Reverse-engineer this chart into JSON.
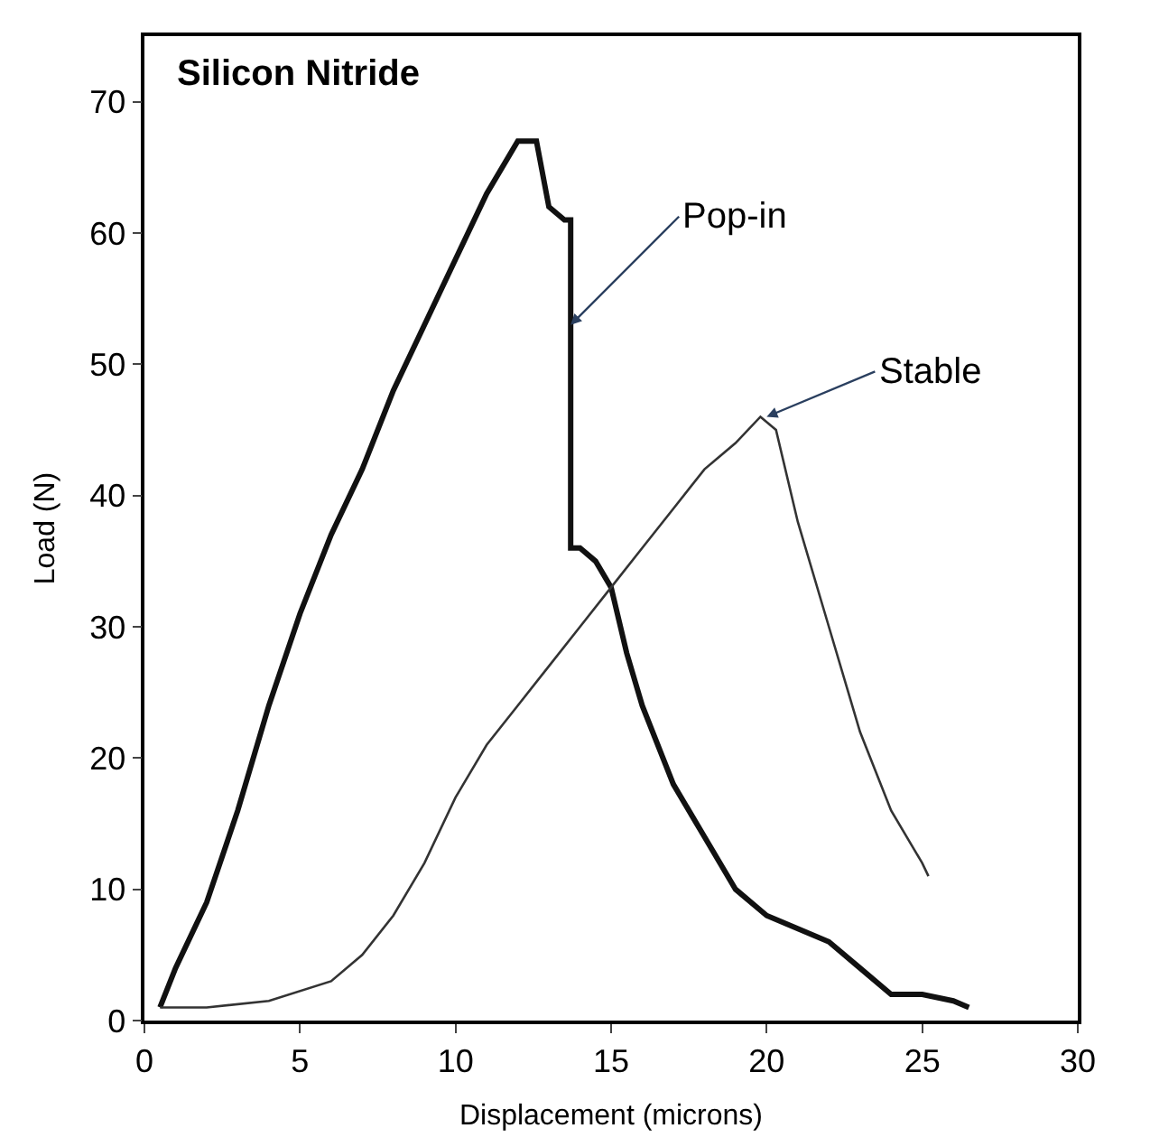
{
  "chart_data": {
    "type": "line",
    "title": "Silicon Nitride",
    "xlabel": "Displacement (microns)",
    "ylabel": "Load (N)",
    "xlim": [
      0,
      30
    ],
    "xticks": [
      0,
      5,
      10,
      15,
      20,
      25,
      30
    ],
    "ylim": [
      0,
      75
    ],
    "yticks": [
      0,
      10,
      20,
      30,
      40,
      50,
      60,
      70
    ],
    "series": [
      {
        "color": "#111111",
        "x": [
          0.5,
          1,
          2,
          3,
          4,
          5,
          6,
          7,
          8,
          9,
          10,
          11,
          12,
          12.6,
          13,
          13.5,
          13.7,
          13.7,
          14,
          14.5,
          15,
          15.5,
          16,
          17,
          18,
          19,
          20,
          21,
          22,
          23,
          24,
          25,
          26,
          26.5
        ],
        "values": [
          1,
          4,
          9,
          16,
          24,
          31,
          37,
          42,
          48,
          53,
          58,
          63,
          67,
          67,
          62,
          61,
          61,
          36,
          36,
          35,
          33,
          28,
          24,
          18,
          14,
          10,
          8,
          7,
          6,
          4,
          2,
          2,
          1.5,
          1
        ]
      },
      {
        "color": "#333333",
        "x": [
          0.5,
          2,
          4,
          6,
          7,
          8,
          9,
          10,
          11,
          12,
          13,
          14,
          15,
          16,
          17,
          18,
          19,
          19.8,
          20.3,
          21,
          22,
          23,
          24,
          25,
          25.2
        ],
        "values": [
          1,
          1,
          1.5,
          3,
          5,
          8,
          12,
          17,
          21,
          24,
          27,
          30,
          33,
          36,
          39,
          42,
          44,
          46,
          45,
          38,
          30,
          22,
          16,
          12,
          11
        ]
      }
    ],
    "annotations": [
      {
        "text": "Pop-in",
        "x": 13.7,
        "y": 53
      },
      {
        "text": "Stable",
        "x": 20,
        "y": 46
      }
    ]
  }
}
